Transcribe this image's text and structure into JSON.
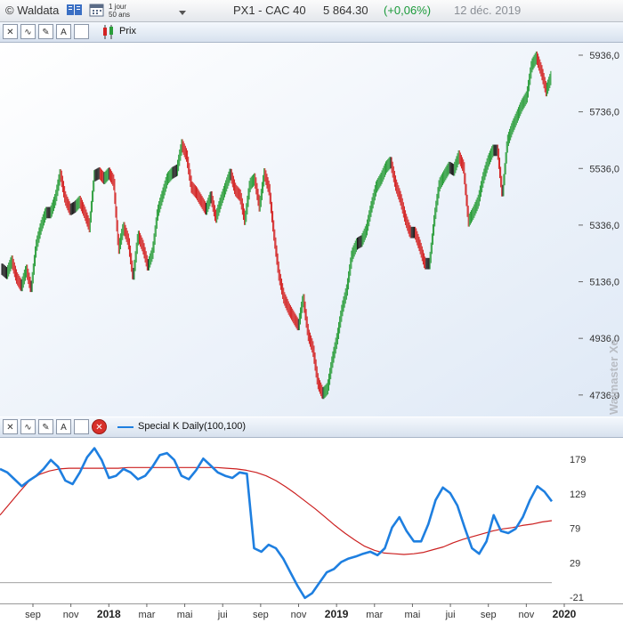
{
  "header": {
    "logo": "© Waldata",
    "period_line1": "1 jour",
    "period_line2": "50 ans",
    "instrument": "PX1 - CAC 40",
    "price": "5 864.30",
    "change": "(+0,06%)",
    "date": "12 déc. 2019"
  },
  "price_panel": {
    "toolbar_label": "Prix",
    "watermark": "Walmaster Xe"
  },
  "indicator_panel": {
    "toolbar_label": "Special K Daily(100,100)"
  },
  "colors": {
    "up_candle": "#2a9d3a",
    "down_candle": "#d32222",
    "bar_neutral": "#1a1a1a",
    "special_k_line": "#1e7fe0",
    "signal_line": "#cc2020",
    "zero_line": "#808080",
    "gain_text": "#1a9a3a"
  },
  "chart_data": [
    {
      "type": "candlestick",
      "x_labels": [
        "sep",
        "nov",
        "2018",
        "mar",
        "mai",
        "jui",
        "sep",
        "nov",
        "2019",
        "mar",
        "mai",
        "jui",
        "sep",
        "nov",
        "2020"
      ],
      "y_ticks": [
        "5936,0",
        "5736,0",
        "5536,0",
        "5336,0",
        "5136,0",
        "4936,0",
        "4736,0"
      ],
      "ylim": [
        4660,
        5980
      ],
      "series": [
        {
          "values": [
            5180,
            5165,
            5210,
            5150,
            5120,
            5180,
            5110,
            5260,
            5330,
            5380,
            5380,
            5430,
            5520,
            5430,
            5390,
            5400,
            5420,
            5380,
            5330,
            5510,
            5520,
            5500,
            5520,
            5490,
            5250,
            5330,
            5280,
            5150,
            5300,
            5260,
            5190,
            5240,
            5380,
            5440,
            5500,
            5520,
            5530,
            5620,
            5580,
            5470,
            5450,
            5420,
            5390,
            5440,
            5360,
            5420,
            5470,
            5520,
            5460,
            5440,
            5350,
            5480,
            5500,
            5400,
            5520,
            5460,
            5300,
            5160,
            5080,
            5040,
            5010,
            4980,
            5080,
            4950,
            4900,
            4780,
            4740,
            4760,
            4860,
            4940,
            5040,
            5110,
            5230,
            5270,
            5280,
            5320,
            5400,
            5470,
            5500,
            5540,
            5560,
            5480,
            5430,
            5360,
            5310,
            5310,
            5260,
            5200,
            5200,
            5360,
            5480,
            5510,
            5540,
            5530,
            5580,
            5540,
            5350,
            5380,
            5420,
            5500,
            5560,
            5600,
            5600,
            5440,
            5630,
            5680,
            5720,
            5760,
            5790,
            5900,
            5930,
            5880,
            5810,
            5860
          ]
        }
      ]
    },
    {
      "type": "line",
      "x_labels": [
        "sep",
        "nov",
        "2018",
        "mar",
        "mai",
        "jui",
        "sep",
        "nov",
        "2019",
        "mar",
        "mai",
        "jui",
        "sep",
        "nov",
        "2020"
      ],
      "y_ticks": [
        "179",
        "129",
        "79",
        "29",
        "-21"
      ],
      "ylim": [
        -30,
        210
      ],
      "series": [
        {
          "name": "Special K Daily(100,100)",
          "values": [
            165,
            160,
            150,
            140,
            148,
            155,
            165,
            178,
            168,
            148,
            143,
            160,
            182,
            195,
            178,
            152,
            155,
            165,
            160,
            150,
            155,
            168,
            185,
            188,
            178,
            155,
            150,
            163,
            180,
            170,
            160,
            155,
            152,
            160,
            158,
            50,
            45,
            55,
            50,
            35,
            15,
            -5,
            -22,
            -15,
            0,
            15,
            20,
            30,
            35,
            38,
            42,
            45,
            40,
            50,
            80,
            95,
            75,
            60,
            60,
            85,
            120,
            138,
            130,
            112,
            80,
            50,
            42,
            60,
            98,
            75,
            72,
            78,
            95,
            120,
            140,
            132,
            118
          ]
        },
        {
          "name": "",
          "values": [
            98,
            115,
            132,
            148,
            157,
            162,
            165,
            166,
            166,
            166,
            166,
            166,
            166,
            167,
            167,
            167,
            167,
            167,
            167,
            167,
            167,
            167,
            167,
            166,
            165,
            163,
            160,
            155,
            148,
            139,
            129,
            118,
            107,
            95,
            83,
            72,
            62,
            53,
            47,
            43,
            42,
            41,
            42,
            44,
            48,
            52,
            58,
            63,
            67,
            71,
            75,
            78,
            80,
            83,
            85,
            88,
            90
          ]
        }
      ]
    }
  ]
}
